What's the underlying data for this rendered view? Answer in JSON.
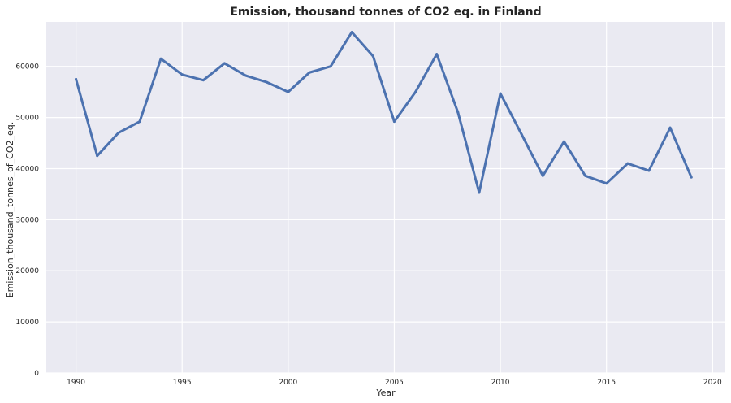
{
  "chart_data": {
    "type": "line",
    "title": "Emission, thousand tonnes of CO2 eq. in Finland",
    "xlabel": "Year",
    "ylabel": "Emission_thousand_tonnes_of_CO2_eq.",
    "xlim": [
      1988.6,
      2020.6
    ],
    "ylim": [
      0,
      68700
    ],
    "xticks": [
      1990,
      1995,
      2000,
      2005,
      2010,
      2015,
      2020
    ],
    "yticks": [
      0,
      10000,
      20000,
      30000,
      40000,
      50000,
      60000
    ],
    "grid": true,
    "colors": {
      "background": "#EAEAF2",
      "grid": "#FFFFFF",
      "line": "#4C72B0"
    },
    "series": [
      {
        "x": [
          1990,
          1991,
          1992,
          1993,
          1994,
          1995,
          1996,
          1997,
          1998,
          1999,
          2000,
          2001,
          2002,
          2003,
          2004,
          2005,
          2006,
          2007,
          2008,
          2009,
          2010,
          2011,
          2012,
          2013,
          2014,
          2015,
          2016,
          2017,
          2018,
          2019
        ],
        "values": [
          57500,
          42500,
          47000,
          49200,
          61500,
          58400,
          57300,
          60600,
          58200,
          56900,
          55000,
          58800,
          60000,
          66700,
          62000,
          49200,
          55000,
          62400,
          51000,
          35300,
          54700,
          46700,
          38600,
          45300,
          38600,
          37100,
          41000,
          39600,
          48000,
          38300
        ]
      }
    ]
  }
}
